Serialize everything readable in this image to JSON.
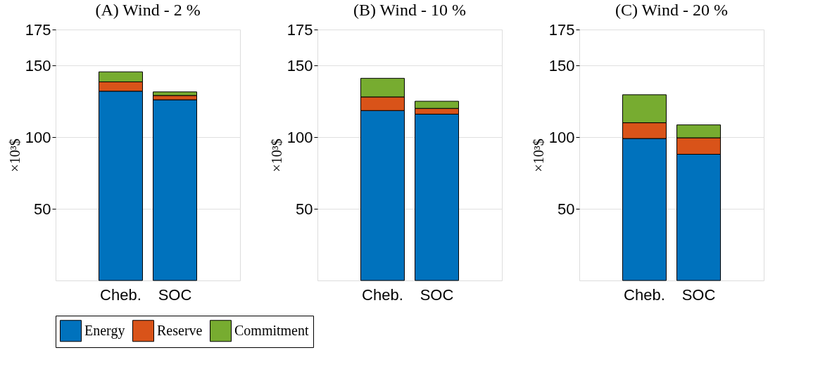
{
  "chart_data": [
    {
      "type": "bar",
      "stacked": true,
      "title": "(A) Wind - 2 %",
      "ylabel": "×10³$",
      "categories": [
        "Cheb.",
        "SOC"
      ],
      "ylim": [
        0,
        175
      ],
      "yticks": [
        50,
        100,
        150,
        175
      ],
      "grid": "y",
      "legend": "bottom",
      "series": [
        {
          "name": "Energy",
          "color": "#0072bd",
          "values": [
            132,
            126
          ]
        },
        {
          "name": "Reserve",
          "color": "#d95319",
          "values": [
            6.5,
            3
          ]
        },
        {
          "name": "Commitment",
          "color": "#77ac30",
          "values": [
            7,
            2.5
          ]
        }
      ]
    },
    {
      "type": "bar",
      "stacked": true,
      "title": "(B) Wind - 10 %",
      "ylabel": "×10³$",
      "categories": [
        "Cheb.",
        "SOC"
      ],
      "ylim": [
        0,
        175
      ],
      "yticks": [
        50,
        100,
        150,
        175
      ],
      "grid": "y",
      "legend": "bottom",
      "series": [
        {
          "name": "Energy",
          "color": "#0072bd",
          "values": [
            118.5,
            116
          ]
        },
        {
          "name": "Reserve",
          "color": "#d95319",
          "values": [
            9.5,
            4
          ]
        },
        {
          "name": "Commitment",
          "color": "#77ac30",
          "values": [
            13,
            5
          ]
        }
      ]
    },
    {
      "type": "bar",
      "stacked": true,
      "title": "(C) Wind - 20 %",
      "ylabel": "×10³$",
      "categories": [
        "Cheb.",
        "SOC"
      ],
      "ylim": [
        0,
        175
      ],
      "yticks": [
        50,
        100,
        150,
        175
      ],
      "grid": "y",
      "legend": "bottom",
      "series": [
        {
          "name": "Energy",
          "color": "#0072bd",
          "values": [
            99,
            88
          ]
        },
        {
          "name": "Reserve",
          "color": "#d95319",
          "values": [
            11,
            11.5
          ]
        },
        {
          "name": "Commitment",
          "color": "#77ac30",
          "values": [
            19.5,
            9
          ]
        }
      ]
    }
  ]
}
